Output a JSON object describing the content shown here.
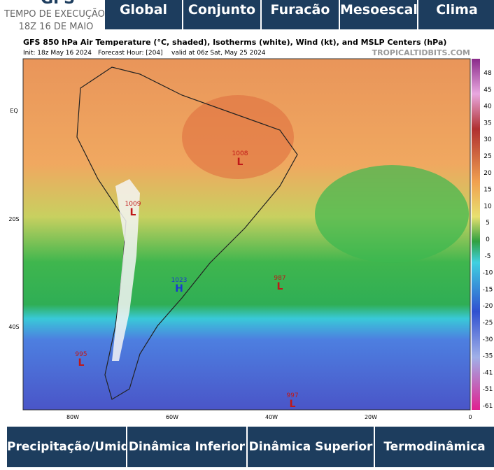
{
  "header": {
    "logo": "GFS",
    "run_label": "TEMPO DE EXECUÇÃO:",
    "run_time": "18Z 16 DE MAIO"
  },
  "tabs": [
    "Global",
    "Conjunto",
    "Furacão",
    "Mesoescala",
    "Clima"
  ],
  "map": {
    "title": "GFS 850 hPa Air Temperature (°C, shaded), Isotherms (white), Wind (kt), and MSLP Centers (hPa)",
    "init": "Init: 18z May 16 2024",
    "forecast_hour": "Forecast Hour: [204]",
    "valid": "valid at 06z Sat, May 25 2024",
    "credit": "TROPICALTIDBITS.COM",
    "colorbar": [
      48,
      45,
      40,
      35,
      30,
      25,
      20,
      15,
      10,
      5,
      0,
      -5,
      -10,
      -15,
      -20,
      -25,
      -30,
      -35,
      -41,
      -51,
      -61
    ],
    "lon_labels": [
      "80W",
      "60W",
      "40W",
      "20W",
      "0"
    ],
    "lat_labels": [
      "EQ",
      "20S",
      "40S"
    ],
    "centers": [
      {
        "value": "1008",
        "kind": "L"
      },
      {
        "value": "1009",
        "kind": "L"
      },
      {
        "value": "1023",
        "kind": "H"
      },
      {
        "value": "987",
        "kind": "L"
      },
      {
        "value": "995",
        "kind": "L"
      },
      {
        "value": "997",
        "kind": "L"
      }
    ]
  },
  "bottom_tabs": [
    "Precipitação/Umidade",
    "Dinâmica Inferior",
    "Dinâmica Superior",
    "Termodinâmica"
  ]
}
